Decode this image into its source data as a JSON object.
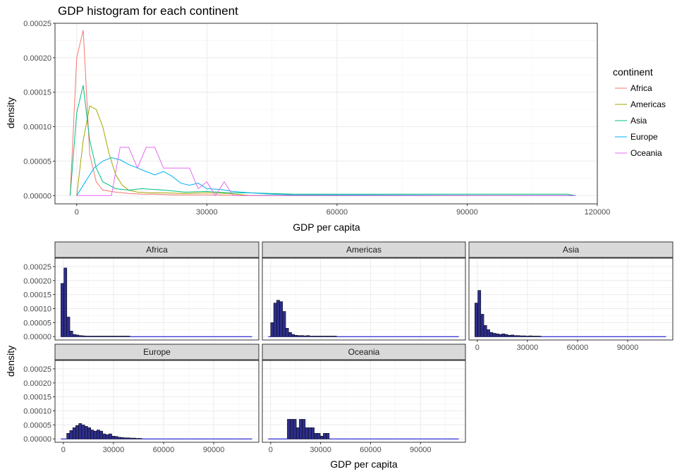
{
  "chart_data": [
    {
      "type": "line",
      "title": "GDP histogram for each continent",
      "xlabel": "GDP per capita",
      "ylabel": "density",
      "xlim": [
        -5000,
        120000
      ],
      "ylim": [
        -1.2e-05,
        0.00025
      ],
      "x_ticks": [
        0,
        30000,
        60000,
        90000,
        120000
      ],
      "y_ticks": [
        0,
        5e-05,
        0.0001,
        0.00015,
        0.0002,
        0.00025
      ],
      "x_tick_labels": [
        "0",
        "30000",
        "60000",
        "90000",
        "120000"
      ],
      "y_tick_labels": [
        "0.00000",
        "0.00005",
        "0.00010",
        "0.00015",
        "0.00020",
        "0.00025"
      ],
      "grid": true,
      "legend": {
        "title": "continent",
        "position": "right"
      },
      "series": [
        {
          "name": "Africa",
          "color": "#F8766D",
          "x": [
            -1500,
            0,
            1500,
            3000,
            4500,
            6000,
            9000,
            12000,
            15000,
            18000,
            22000,
            30000,
            40000,
            50000,
            115000
          ],
          "values": [
            0,
            0.0002,
            0.00024,
            6e-05,
            2e-05,
            8e-06,
            5e-06,
            3e-06,
            2e-06,
            2e-06,
            1e-06,
            1e-06,
            0,
            0,
            0
          ]
        },
        {
          "name": "Americas",
          "color": "#A3A500",
          "x": [
            0,
            1500,
            3000,
            4500,
            6000,
            7500,
            9000,
            10500,
            12000,
            14000,
            17000,
            20000,
            25000,
            30000,
            35000,
            40000,
            115000
          ],
          "values": [
            0,
            8e-05,
            0.00013,
            0.000125,
            0.0001,
            6e-05,
            3e-05,
            1.5e-05,
            8e-06,
            5e-06,
            4e-06,
            4e-06,
            3e-06,
            4e-06,
            3e-06,
            0,
            0
          ]
        },
        {
          "name": "Asia",
          "color": "#00BF7D",
          "x": [
            -1500,
            0,
            1500,
            3000,
            4500,
            6000,
            7500,
            9000,
            12000,
            15000,
            20000,
            25000,
            30000,
            35000,
            40000,
            50000,
            60000,
            80000,
            95000,
            108000,
            113000,
            115000
          ],
          "values": [
            0,
            0.00012,
            0.00016,
            8e-05,
            4e-05,
            2e-05,
            1.5e-05,
            1e-05,
            8e-06,
            1e-05,
            8e-06,
            5e-06,
            6e-06,
            4e-06,
            4e-06,
            2e-06,
            2e-06,
            2e-06,
            2e-06,
            2e-06,
            2e-06,
            0
          ]
        },
        {
          "name": "Europe",
          "color": "#00B0F6",
          "x": [
            0,
            2000,
            4000,
            6000,
            8000,
            10000,
            12000,
            14000,
            16000,
            18000,
            20000,
            22000,
            24000,
            26000,
            28000,
            30000,
            33000,
            36000,
            40000,
            45000,
            50000,
            115000
          ],
          "values": [
            0,
            2e-05,
            4e-05,
            5e-05,
            5.5e-05,
            5.2e-05,
            4.5e-05,
            4e-05,
            3.5e-05,
            3e-05,
            3.5e-05,
            2.8e-05,
            1.8e-05,
            1.5e-05,
            1.8e-05,
            1e-05,
            9e-06,
            6e-06,
            4e-06,
            2e-06,
            1e-06,
            0
          ]
        },
        {
          "name": "Oceania",
          "color": "#E76BF3",
          "x": [
            0,
            8000,
            10000,
            12000,
            14000,
            16000,
            18000,
            20000,
            22000,
            24000,
            26000,
            28000,
            30000,
            32000,
            34000,
            36000,
            115000
          ],
          "values": [
            0,
            0,
            7e-05,
            7e-05,
            4e-05,
            7e-05,
            7e-05,
            4e-05,
            4e-05,
            4e-05,
            4e-05,
            1e-05,
            2e-05,
            0,
            2e-05,
            0,
            0
          ]
        }
      ]
    },
    {
      "type": "bar",
      "xlabel": "GDP per capita",
      "ylabel": "density",
      "xlim": [
        -5000,
        117000
      ],
      "ylim": [
        -1.2e-05,
        0.00028
      ],
      "x_ticks": [
        0,
        30000,
        60000,
        90000
      ],
      "y_ticks": [
        0,
        5e-05,
        0.0001,
        0.00015,
        0.0002,
        0.00025
      ],
      "x_tick_labels": [
        "0",
        "30000",
        "60000",
        "90000"
      ],
      "y_tick_labels": [
        "0.00000",
        "0.00005",
        "0.00010",
        "0.00015",
        "0.00020",
        "0.00025"
      ],
      "grid": true,
      "bin_width": 1800,
      "bar_fill": "#2E2E8B",
      "bar_outline": "#000000",
      "baseline_color": "#0000CD",
      "facets": [
        {
          "name": "Africa",
          "bin_start": -1500,
          "values": [
            0.00019,
            0.000245,
            7e-05,
            2e-05,
            8e-06,
            6e-06,
            4e-06,
            3e-06,
            2e-06,
            2e-06,
            2e-06,
            2e-06,
            2e-06,
            2e-06,
            2e-06,
            2e-06,
            2e-06,
            2e-06,
            2e-06,
            2e-06,
            2e-06,
            2e-06,
            2e-06
          ]
        },
        {
          "name": "Americas",
          "bin_start": 0,
          "values": [
            5e-05,
            0.00012,
            0.00013,
            0.000125,
            9e-05,
            3e-05,
            1.5e-05,
            8e-06,
            5e-06,
            4e-06,
            4e-06,
            3e-06,
            4e-06,
            2e-06,
            2e-06,
            2e-06,
            2e-06,
            2e-06,
            2e-06,
            2e-06,
            2e-06,
            2e-06
          ]
        },
        {
          "name": "Asia",
          "bin_start": -1500,
          "values": [
            0.00012,
            0.000165,
            8e-05,
            4e-05,
            2.5e-05,
            1.5e-05,
            1.2e-05,
            1e-05,
            8e-06,
            1e-05,
            8e-06,
            5e-06,
            6e-06,
            4e-06,
            4e-06,
            3e-06,
            3e-06,
            2e-06,
            3e-06,
            2e-06,
            2e-06,
            2e-06
          ]
        },
        {
          "name": "Europe",
          "bin_start": 2000,
          "values": [
            2e-05,
            3e-05,
            4e-05,
            4.8e-05,
            5.5e-05,
            5e-05,
            4.5e-05,
            4e-05,
            3.2e-05,
            2.8e-05,
            3.2e-05,
            2.8e-05,
            1.8e-05,
            1.5e-05,
            1.8e-05,
            1e-05,
            9e-06,
            6e-06,
            5e-06,
            4e-06,
            4e-06,
            3e-06,
            3e-06,
            2e-06,
            2e-06
          ]
        },
        {
          "name": "Oceania",
          "bin_start": 10000,
          "values": [
            7e-05,
            7e-05,
            7e-05,
            4e-05,
            7e-05,
            7e-05,
            4e-05,
            4e-05,
            4e-05,
            2e-05,
            2e-05,
            1e-05,
            2e-05,
            2e-05
          ]
        }
      ]
    }
  ]
}
